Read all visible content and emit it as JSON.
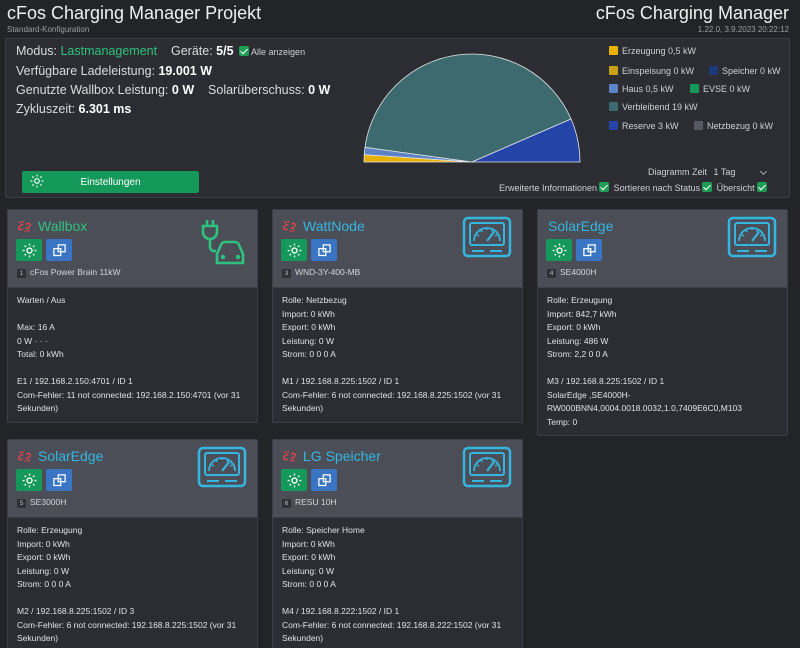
{
  "header": {
    "title": "cFos Charging Manager Projekt",
    "subtitle": "Standard-Konfiguration",
    "app_name": "cFos Charging Manager",
    "version": "1.22.0, 3.9.2023 20:22:12"
  },
  "overview": {
    "mode_label": "Modus:",
    "mode_value": "Lastmanagement",
    "devices_label": "Geräte:",
    "devices_value": "5/5",
    "show_all_label": "Alle anzeigen",
    "available_label": "Verfügbare Ladeleistung:",
    "available_value": "19.001 W",
    "wallbox_label": "Genutzte Wallbox Leistung:",
    "wallbox_value": "0 W",
    "solar_label": "Solarüberschuss:",
    "solar_value": "0 W",
    "cycle_label": "Zykluszeit:",
    "cycle_value": "6.301 ms",
    "settings_button": "Einstellungen"
  },
  "legend": [
    {
      "label": "Erzeugung 0,5 kW",
      "color": "#e8b100"
    },
    {
      "label": "Einspeisung 0 kW",
      "color": "#c9a017"
    },
    {
      "label": "Speicher 0 kW",
      "color": "#1d3a78"
    },
    {
      "label": "Haus 0,5 kW",
      "color": "#5c83c6"
    },
    {
      "label": "EVSE 0 kW",
      "color": "#14995a"
    },
    {
      "label": "Verbleibend 19 kW",
      "color": "#3d6a6e"
    },
    {
      "label": "Reserve 3 kW",
      "color": "#2444a8"
    },
    {
      "label": "Netzbezug 0 kW",
      "color": "#555860"
    }
  ],
  "chart_data": {
    "type": "pie",
    "shape": "half-donut",
    "slices": [
      {
        "name": "Erzeugung",
        "value": 0.5,
        "color": "#e8b100"
      },
      {
        "name": "Haus",
        "value": 0.5,
        "color": "#5c83c6"
      },
      {
        "name": "Verbleibend",
        "value": 19,
        "color": "#3d6a6e"
      },
      {
        "name": "Reserve",
        "value": 3,
        "color": "#2444a8"
      }
    ]
  },
  "options": {
    "diagram_time_label": "Diagramm Zeit",
    "diagram_time_value": "1 Tag",
    "extended_info_label": "Erweiterte Informationen",
    "sort_status_label": "Sortieren nach Status",
    "overview_label": "Übersicht"
  },
  "cards": [
    {
      "name": "Wallbox",
      "name_color": "#2ec27e",
      "id": "1",
      "model": "cFos Power Brain 11kW",
      "icon": "ev-charger-icon",
      "lines": [
        "Warten / Aus",
        "",
        "Max: 16 A",
        "0 W · · ·",
        "Total: 0 kWh",
        "",
        "E1 / 192.168.2.150:4701 / ID 1",
        "Com-Fehler: 11 not connected: 192.168.2.150:4701 (vor 31",
        "Sekunden)"
      ]
    },
    {
      "name": "WattNode",
      "name_color": "#35b6e0",
      "id": "3",
      "model": "WND-3Y-400-MB",
      "icon": "meter-icon",
      "lines": [
        "Rolle: Netzbezug",
        "Import: 0 kWh",
        "Export: 0 kWh",
        "Leistung: 0 W",
        "Strom: 0 0 0 A",
        "",
        "M1 / 192.168.8.225:1502 / ID 1",
        "Com-Fehler: 6 not connected: 192.168.8.225:1502 (vor 31",
        "Sekunden)"
      ]
    },
    {
      "name": "SolarEdge",
      "name_color": "#35b6e0",
      "id": "4",
      "model": "SE4000H",
      "icon": "meter-icon",
      "lines": [
        "Rolle: Erzeugung",
        "Import: 842,7 kWh",
        "Export: 0 kWh",
        "Leistung: 486 W",
        "Strom: 2,2 0 0 A",
        "",
        "M3 / 192.168.8.225:1502 / ID 1",
        "SolarEdge ,SE4000H-",
        "RW000BNN4,0004.0018.0032,1.0,7409E6C0,M103",
        "Temp: 0"
      ]
    },
    {
      "name": "SolarEdge",
      "name_color": "#35b6e0",
      "id": "5",
      "model": "SE3000H",
      "icon": "meter-icon",
      "lines": [
        "Rolle: Erzeugung",
        "Import: 0 kWh",
        "Export: 0 kWh",
        "Leistung: 0 W",
        "Strom: 0 0 0 A",
        "",
        "M2 / 192.168.8.225:1502 / ID 3",
        "Com-Fehler: 6 not connected: 192.168.8.225:1502 (vor 31",
        "Sekunden)"
      ]
    },
    {
      "name": "LG Speicher",
      "name_color": "#35b6e0",
      "id": "6",
      "model": "RESU 10H",
      "icon": "meter-icon",
      "lines": [
        "Rolle: Speicher Home",
        "Import: 0 kWh",
        "Export: 0 kWh",
        "Leistung: 0 W",
        "Strom: 0 0 0 A",
        "",
        "M4 / 192.168.8.222:1502 / ID 1",
        "Com-Fehler: 6 not connected: 192.168.8.222:1502 (vor 31",
        "Sekunden)"
      ]
    }
  ]
}
